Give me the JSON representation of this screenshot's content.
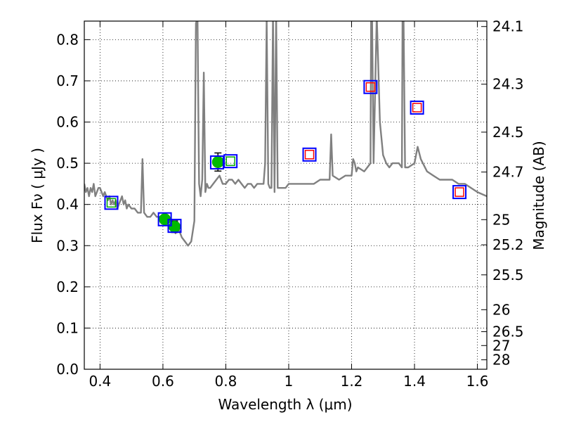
{
  "chart_data": {
    "type": "scatter",
    "title": "",
    "xlabel": "Wavelength  λ (μm)",
    "ylabel": "Flux  Fν  ( μJy )",
    "ylabel_right": "Magnitude (AB)",
    "xlim": [
      0.35,
      1.63
    ],
    "ylim": [
      0.0,
      0.845
    ],
    "grid": true,
    "x_ticks": [
      {
        "value": 0.4,
        "label": "0.4"
      },
      {
        "value": 0.6,
        "label": "0.6"
      },
      {
        "value": 0.8,
        "label": "0.8"
      },
      {
        "value": 1.0,
        "label": "1"
      },
      {
        "value": 1.2,
        "label": "1.2"
      },
      {
        "value": 1.4,
        "label": "1.4"
      },
      {
        "value": 1.6,
        "label": "1.6"
      }
    ],
    "y_ticks": [
      {
        "value": 0.0,
        "label": "0.0"
      },
      {
        "value": 0.1,
        "label": "0.1"
      },
      {
        "value": 0.2,
        "label": "0.2"
      },
      {
        "value": 0.3,
        "label": "0.3"
      },
      {
        "value": 0.4,
        "label": "0.4"
      },
      {
        "value": 0.5,
        "label": "0.5"
      },
      {
        "value": 0.6,
        "label": "0.6"
      },
      {
        "value": 0.7,
        "label": "0.7"
      },
      {
        "value": 0.8,
        "label": "0.8"
      }
    ],
    "right_ticks": [
      {
        "mag": 24.1,
        "label": "24.1"
      },
      {
        "mag": 24.3,
        "label": "24.3"
      },
      {
        "mag": 24.5,
        "label": "24.5"
      },
      {
        "mag": 24.7,
        "label": "24.7"
      },
      {
        "mag": 25.0,
        "label": "25"
      },
      {
        "mag": 25.2,
        "label": "25.2"
      },
      {
        "mag": 25.5,
        "label": "25.5"
      },
      {
        "mag": 26.0,
        "label": "26"
      },
      {
        "mag": 26.5,
        "label": "26.5"
      },
      {
        "mag": 27.0,
        "label": "27"
      },
      {
        "mag": 28.0,
        "label": "28"
      }
    ],
    "series": [
      {
        "kind": "line",
        "color": "#808080",
        "x": [
          0.35,
          0.355,
          0.36,
          0.365,
          0.37,
          0.375,
          0.38,
          0.385,
          0.39,
          0.395,
          0.4,
          0.405,
          0.41,
          0.415,
          0.42,
          0.425,
          0.43,
          0.435,
          0.44,
          0.445,
          0.45,
          0.455,
          0.46,
          0.465,
          0.47,
          0.475,
          0.48,
          0.485,
          0.49,
          0.5,
          0.51,
          0.52,
          0.53,
          0.535,
          0.54,
          0.55,
          0.56,
          0.57,
          0.58,
          0.59,
          0.6,
          0.61,
          0.62,
          0.63,
          0.64,
          0.65,
          0.66,
          0.67,
          0.68,
          0.69,
          0.7,
          0.705,
          0.71,
          0.713,
          0.715,
          0.72,
          0.725,
          0.73,
          0.735,
          0.74,
          0.745,
          0.75,
          0.76,
          0.77,
          0.78,
          0.79,
          0.8,
          0.81,
          0.82,
          0.83,
          0.84,
          0.85,
          0.86,
          0.87,
          0.88,
          0.89,
          0.9,
          0.91,
          0.92,
          0.925,
          0.93,
          0.935,
          0.94,
          0.945,
          0.95,
          0.955,
          0.96,
          0.965,
          0.97,
          0.98,
          0.99,
          1.0,
          1.02,
          1.04,
          1.06,
          1.08,
          1.1,
          1.12,
          1.13,
          1.135,
          1.14,
          1.16,
          1.18,
          1.2,
          1.205,
          1.21,
          1.215,
          1.22,
          1.24,
          1.25,
          1.26,
          1.262,
          1.265,
          1.27,
          1.28,
          1.29,
          1.3,
          1.31,
          1.32,
          1.33,
          1.35,
          1.36,
          1.362,
          1.365,
          1.37,
          1.38,
          1.4,
          1.41,
          1.42,
          1.44,
          1.46,
          1.48,
          1.5,
          1.52,
          1.54,
          1.56,
          1.58,
          1.6,
          1.63
        ],
        "y": [
          0.45,
          0.43,
          0.44,
          0.42,
          0.44,
          0.43,
          0.45,
          0.42,
          0.43,
          0.44,
          0.44,
          0.43,
          0.42,
          0.43,
          0.42,
          0.41,
          0.42,
          0.4,
          0.41,
          0.4,
          0.41,
          0.39,
          0.4,
          0.41,
          0.42,
          0.4,
          0.41,
          0.39,
          0.4,
          0.39,
          0.39,
          0.38,
          0.38,
          0.51,
          0.38,
          0.37,
          0.37,
          0.38,
          0.37,
          0.37,
          0.37,
          0.36,
          0.36,
          0.35,
          0.33,
          0.34,
          0.32,
          0.31,
          0.3,
          0.31,
          0.36,
          0.84,
          0.85,
          0.6,
          0.45,
          0.42,
          0.46,
          0.72,
          0.43,
          0.45,
          0.44,
          0.44,
          0.45,
          0.46,
          0.47,
          0.45,
          0.45,
          0.46,
          0.46,
          0.45,
          0.46,
          0.45,
          0.44,
          0.45,
          0.45,
          0.44,
          0.45,
          0.45,
          0.45,
          0.5,
          0.85,
          0.45,
          0.44,
          0.44,
          0.86,
          0.43,
          0.86,
          0.44,
          0.44,
          0.44,
          0.44,
          0.45,
          0.45,
          0.45,
          0.45,
          0.45,
          0.46,
          0.46,
          0.46,
          0.57,
          0.47,
          0.46,
          0.47,
          0.47,
          0.51,
          0.5,
          0.48,
          0.49,
          0.48,
          0.49,
          0.5,
          0.86,
          0.86,
          0.5,
          0.86,
          0.6,
          0.52,
          0.5,
          0.49,
          0.5,
          0.5,
          0.49,
          0.86,
          0.86,
          0.49,
          0.49,
          0.5,
          0.54,
          0.51,
          0.48,
          0.47,
          0.46,
          0.46,
          0.46,
          0.45,
          0.45,
          0.44,
          0.43,
          0.42
        ]
      },
      {
        "kind": "points",
        "marker": "filled-circle",
        "color": "#00bb00",
        "x": [
          0.606,
          0.637,
          0.775
        ],
        "y": [
          0.364,
          0.346,
          0.503
        ],
        "yerr": [
          0.01,
          0.014,
          0.022
        ]
      },
      {
        "kind": "points",
        "marker": "open-square",
        "color": "#0000ff",
        "x": [
          0.436,
          0.606,
          0.637,
          0.772,
          0.815,
          1.066,
          1.26,
          1.408,
          1.543
        ],
        "y": [
          0.404,
          0.364,
          0.348,
          0.502,
          0.505,
          0.521,
          0.685,
          0.635,
          0.43
        ]
      },
      {
        "kind": "points",
        "marker": "open-square-small",
        "color": "#00aa00",
        "x": [
          0.436,
          0.815
        ],
        "y": [
          0.404,
          0.505
        ]
      },
      {
        "kind": "points",
        "marker": "open-square-small",
        "color": "#ff0000",
        "x": [
          1.066,
          1.26,
          1.408,
          1.543
        ],
        "y": [
          0.521,
          0.685,
          0.635,
          0.43
        ]
      }
    ]
  }
}
